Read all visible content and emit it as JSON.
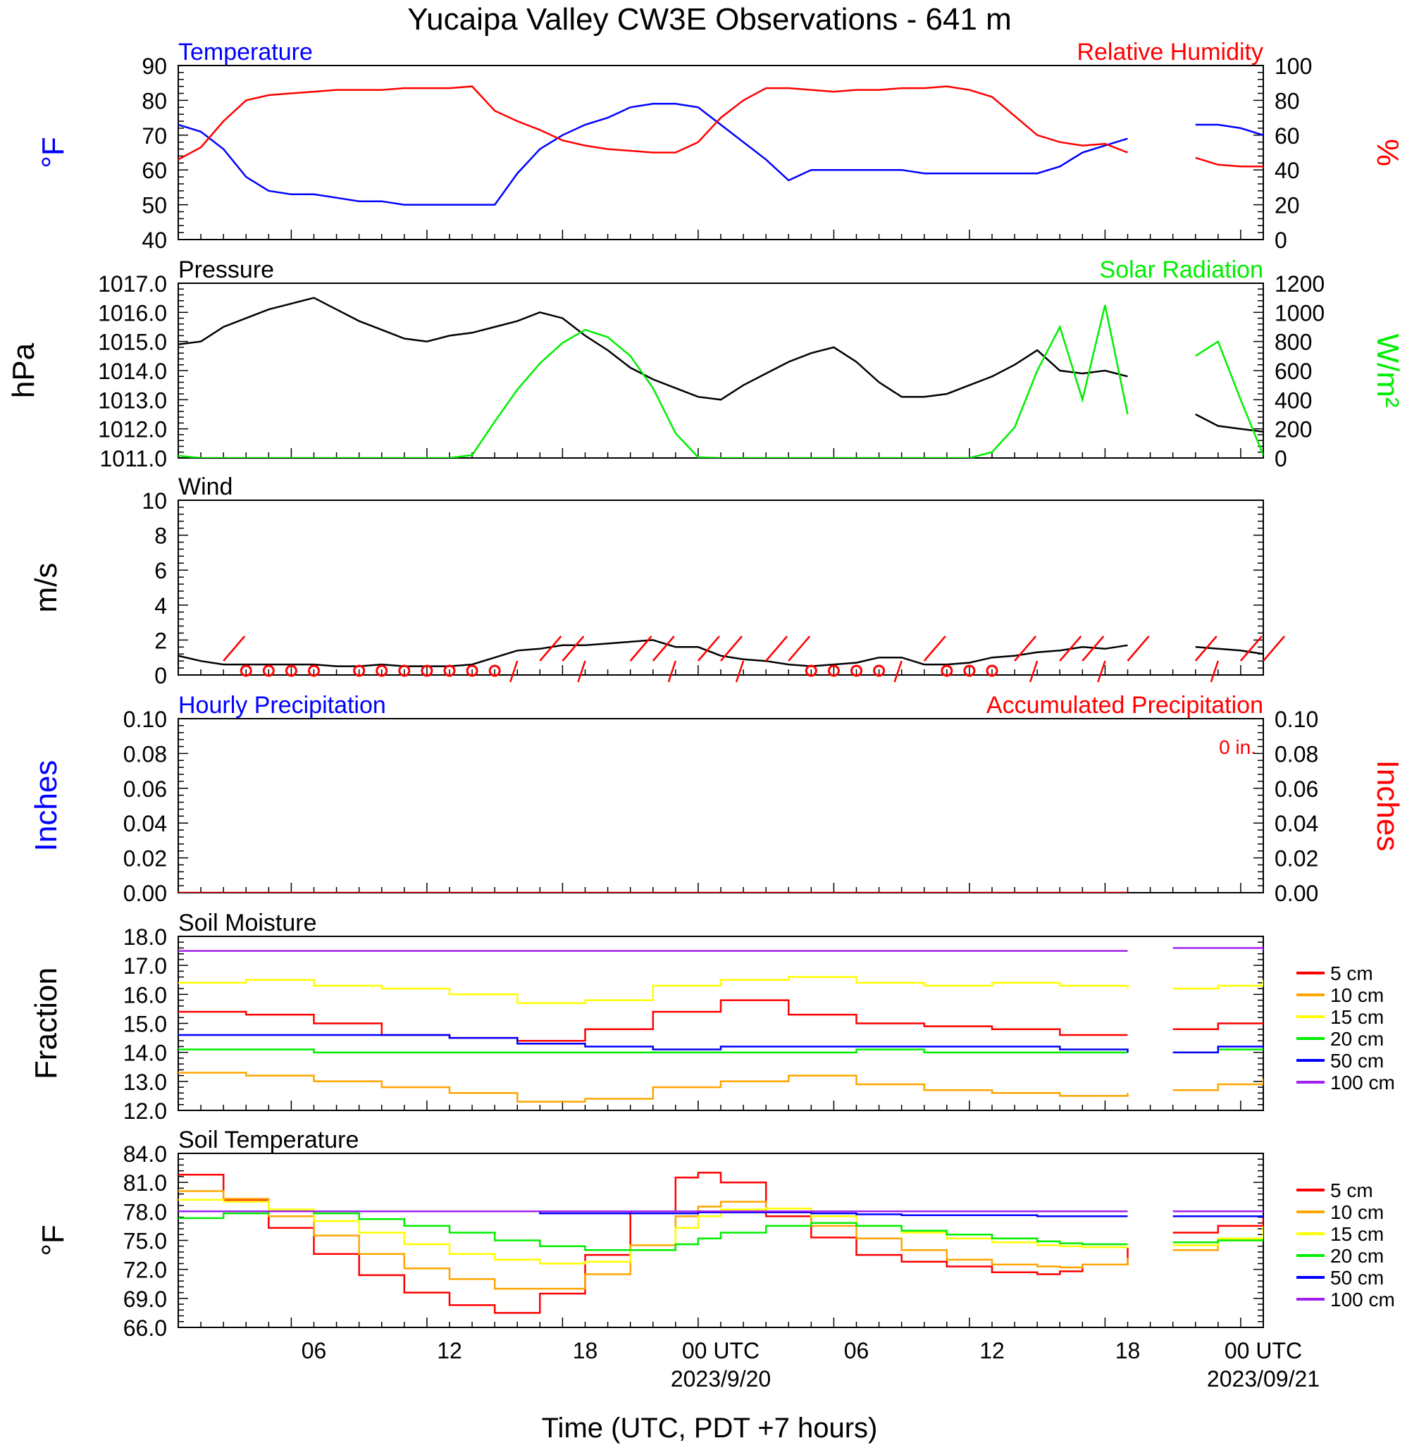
{
  "title": "Yucaipa Valley CW3E Observations - 641 m",
  "xlabel": "Time (UTC, PDT +7 hours)",
  "x_ticks": [
    "06",
    "12",
    "18",
    "00 UTC",
    "06",
    "12",
    "18",
    "00 UTC"
  ],
  "dates": [
    "2023/9/20",
    "2023/09/21"
  ],
  "chart_data": [
    {
      "type": "line",
      "title_left": "Temperature",
      "title_right": "Relative Humidity",
      "ylabel_left": "°F",
      "ylabel_right": "%",
      "ylim_left": [
        40,
        90
      ],
      "ylim_right": [
        0,
        100
      ],
      "yticks_left": [
        "90",
        "80",
        "70",
        "60",
        "50",
        "40"
      ],
      "yticks_right": [
        "100",
        "80",
        "60",
        "40",
        "20",
        "0"
      ],
      "x_hours": [
        1,
        2,
        3,
        4,
        5,
        6,
        7,
        8,
        9,
        10,
        11,
        12,
        13,
        14,
        15,
        16,
        17,
        18,
        19,
        20,
        21,
        22,
        23,
        24,
        25,
        26,
        27,
        28,
        29,
        30,
        31,
        32,
        33,
        34,
        35,
        36,
        37,
        38,
        39,
        40,
        41,
        42,
        43,
        44,
        45,
        46,
        47,
        48,
        49
      ],
      "series": [
        {
          "name": "Temperature",
          "color": "#0000ff",
          "axis": "left",
          "values": [
            73,
            71,
            66,
            58,
            54,
            53,
            53,
            52,
            51,
            51,
            50,
            50,
            50,
            50,
            50,
            59,
            66,
            70,
            73,
            75,
            78,
            79,
            79,
            78,
            73,
            68,
            63,
            57,
            60,
            60,
            60,
            60,
            60,
            59,
            59,
            59,
            59,
            59,
            59,
            61,
            65,
            67,
            69,
            null,
            null,
            73,
            73,
            72,
            70
          ]
        },
        {
          "name": "Relative Humidity",
          "color": "#ff0000",
          "axis": "right",
          "values": [
            46,
            53,
            68,
            80,
            83,
            84,
            85,
            86,
            86,
            86,
            87,
            87,
            87,
            88,
            74,
            68,
            63,
            57,
            54,
            52,
            51,
            50,
            50,
            56,
            70,
            80,
            87,
            87,
            86,
            85,
            86,
            86,
            87,
            87,
            88,
            86,
            82,
            71,
            60,
            56,
            54,
            55,
            50,
            null,
            null,
            47,
            43,
            42,
            42
          ]
        }
      ]
    },
    {
      "type": "line",
      "title_left": "Pressure",
      "title_right": "Solar Radiation",
      "ylabel_left": "hPa",
      "ylabel_right": "W/m²",
      "ylim_left": [
        1011.0,
        1017.0
      ],
      "ylim_right": [
        0,
        1200
      ],
      "yticks_left": [
        "1017.0",
        "1016.0",
        "1015.0",
        "1014.0",
        "1013.0",
        "1012.0",
        "1011.0"
      ],
      "yticks_right": [
        "1200",
        "1000",
        "800",
        "600",
        "400",
        "200",
        "0"
      ],
      "x_hours": [
        1,
        2,
        3,
        4,
        5,
        6,
        7,
        8,
        9,
        10,
        11,
        12,
        13,
        14,
        15,
        16,
        17,
        18,
        19,
        20,
        21,
        22,
        23,
        24,
        25,
        26,
        27,
        28,
        29,
        30,
        31,
        32,
        33,
        34,
        35,
        36,
        37,
        38,
        39,
        40,
        41,
        42,
        43,
        44,
        45,
        46,
        47,
        48,
        49
      ],
      "series": [
        {
          "name": "Pressure",
          "color": "#000000",
          "axis": "left",
          "values": [
            1014.9,
            1015.0,
            1015.5,
            1015.8,
            1016.1,
            1016.3,
            1016.5,
            1016.1,
            1015.7,
            1015.4,
            1015.1,
            1015.0,
            1015.2,
            1015.3,
            1015.5,
            1015.7,
            1016.0,
            1015.8,
            1015.2,
            1014.7,
            1014.1,
            1013.7,
            1013.4,
            1013.1,
            1013.0,
            1013.5,
            1013.9,
            1014.3,
            1014.6,
            1014.8,
            1014.3,
            1013.6,
            1013.1,
            1013.1,
            1013.2,
            1013.5,
            1013.8,
            1014.2,
            1014.7,
            1014.0,
            1013.9,
            1014.0,
            1013.8,
            null,
            null,
            1012.5,
            1012.1,
            1012.0,
            1011.9
          ]
        },
        {
          "name": "Solar Radiation",
          "color": "#00ee00",
          "axis": "right",
          "values": [
            15,
            0,
            0,
            0,
            0,
            0,
            0,
            0,
            0,
            0,
            0,
            0,
            0,
            20,
            250,
            470,
            650,
            790,
            880,
            830,
            700,
            480,
            170,
            5,
            0,
            0,
            0,
            0,
            0,
            0,
            0,
            0,
            0,
            0,
            0,
            0,
            40,
            210,
            600,
            900,
            400,
            1050,
            300,
            null,
            null,
            700,
            800,
            400,
            20
          ]
        }
      ]
    },
    {
      "type": "line",
      "title_left": "Wind",
      "ylabel_left": "m/s",
      "ylim_left": [
        0,
        10
      ],
      "yticks_left": [
        "10",
        "8",
        "6",
        "4",
        "2",
        "0"
      ],
      "x_hours": [
        1,
        2,
        3,
        4,
        5,
        6,
        7,
        8,
        9,
        10,
        11,
        12,
        13,
        14,
        15,
        16,
        17,
        18,
        19,
        20,
        21,
        22,
        23,
        24,
        25,
        26,
        27,
        28,
        29,
        30,
        31,
        32,
        33,
        34,
        35,
        36,
        37,
        38,
        39,
        40,
        41,
        42,
        43,
        44,
        45,
        46,
        47,
        48,
        49
      ],
      "series": [
        {
          "name": "Wind Speed",
          "color": "#000000",
          "axis": "left",
          "values": [
            1.1,
            0.8,
            0.6,
            0.6,
            0.6,
            0.6,
            0.6,
            0.5,
            0.5,
            0.6,
            0.5,
            0.5,
            0.5,
            0.6,
            1.0,
            1.4,
            1.5,
            1.7,
            1.7,
            1.8,
            1.9,
            2.0,
            1.6,
            1.6,
            1.1,
            0.9,
            0.8,
            0.6,
            0.5,
            0.6,
            0.7,
            1.0,
            1.0,
            0.6,
            0.6,
            0.7,
            1.0,
            1.1,
            1.3,
            1.4,
            1.6,
            1.5,
            1.7,
            null,
            null,
            1.6,
            1.5,
            1.4,
            1.2
          ]
        }
      ],
      "calm_marker_hours": [
        4,
        5,
        6,
        7,
        9,
        10,
        11,
        12,
        13,
        14,
        15,
        29,
        30,
        31,
        32,
        35,
        36,
        37
      ],
      "barb_hours": [
        3,
        16,
        17,
        18,
        19,
        21,
        22,
        23,
        24,
        25,
        26,
        27,
        28,
        33,
        34,
        38,
        39,
        40,
        41,
        42,
        43,
        46,
        47,
        48,
        49
      ]
    },
    {
      "type": "line",
      "title_left": "Hourly Precipitation",
      "title_right": "Accumulated Precipitation",
      "annotation": "0 in.",
      "ylabel_left": "Inches",
      "ylabel_right": "Inches",
      "ylim_left": [
        0,
        0.1
      ],
      "ylim_right": [
        0,
        0.1
      ],
      "yticks_left": [
        "0.10",
        "0.08",
        "0.06",
        "0.04",
        "0.02",
        "0.00"
      ],
      "yticks_right": [
        "0.10",
        "0.08",
        "0.06",
        "0.04",
        "0.02",
        "0.00"
      ],
      "x_hours": [
        1,
        43,
        44,
        49
      ],
      "series": [
        {
          "name": "Accumulated Precipitation",
          "color": "#ff0000",
          "axis": "right",
          "values": [
            0,
            0,
            null,
            0
          ]
        }
      ]
    },
    {
      "type": "line",
      "title_left": "Soil Moisture",
      "ylabel_left": "Fraction",
      "ylim_left": [
        12.0,
        18.0
      ],
      "yticks_left": [
        "18.0",
        "17.0",
        "16.0",
        "15.0",
        "14.0",
        "13.0",
        "12.0"
      ],
      "legend": "right",
      "x_hours": [
        1,
        4,
        7,
        10,
        13,
        16,
        19,
        22,
        25,
        28,
        31,
        34,
        37,
        40,
        43,
        44,
        45,
        47,
        49
      ],
      "series": [
        {
          "name": "5 cm",
          "color": "#ff0000",
          "values": [
            15.4,
            15.3,
            15.0,
            14.6,
            14.5,
            14.4,
            14.8,
            15.4,
            15.8,
            15.3,
            15.0,
            14.9,
            14.8,
            14.6,
            14.6,
            null,
            14.8,
            15.0,
            15.0
          ]
        },
        {
          "name": "10 cm",
          "color": "#ffa500",
          "values": [
            13.3,
            13.2,
            13.0,
            12.8,
            12.6,
            12.3,
            12.4,
            12.8,
            13.0,
            13.2,
            12.9,
            12.7,
            12.6,
            12.5,
            12.6,
            null,
            12.7,
            12.9,
            13.1
          ]
        },
        {
          "name": "15 cm",
          "color": "#ffff00",
          "values": [
            16.4,
            16.5,
            16.3,
            16.2,
            16.0,
            15.7,
            15.8,
            16.3,
            16.5,
            16.6,
            16.4,
            16.3,
            16.4,
            16.3,
            16.2,
            null,
            16.2,
            16.3,
            16.5
          ]
        },
        {
          "name": "20 cm",
          "color": "#00ee00",
          "values": [
            14.1,
            14.1,
            14.0,
            14.0,
            14.0,
            14.0,
            14.0,
            14.0,
            14.0,
            14.0,
            14.1,
            14.0,
            14.0,
            14.0,
            14.0,
            null,
            14.0,
            14.1,
            14.1
          ]
        },
        {
          "name": "50 cm",
          "color": "#0000ff",
          "values": [
            14.6,
            14.6,
            14.6,
            14.6,
            14.5,
            14.3,
            14.2,
            14.1,
            14.2,
            14.2,
            14.2,
            14.2,
            14.2,
            14.1,
            14.0,
            null,
            14.0,
            14.2,
            14.2
          ]
        },
        {
          "name": "100 cm",
          "color": "#a020f0",
          "values": [
            17.5,
            17.5,
            17.5,
            17.5,
            17.5,
            17.5,
            17.5,
            17.5,
            17.5,
            17.5,
            17.5,
            17.5,
            17.5,
            17.5,
            17.5,
            null,
            17.6,
            17.6,
            17.5
          ]
        }
      ]
    },
    {
      "type": "line",
      "title_left": "Soil Temperature",
      "ylabel_left": "°F",
      "ylim_left": [
        66.0,
        84.0
      ],
      "yticks_left": [
        "84.0",
        "81.0",
        "78.0",
        "75.0",
        "72.0",
        "69.0",
        "66.0"
      ],
      "legend": "right",
      "x_hours": [
        1,
        3,
        5,
        7,
        9,
        11,
        13,
        15,
        17,
        19,
        21,
        23,
        24,
        25,
        27,
        29,
        31,
        33,
        35,
        37,
        39,
        40,
        41,
        43,
        44,
        45,
        47,
        49
      ],
      "series": [
        {
          "name": "5 cm",
          "color": "#ff0000",
          "values": [
            81.8,
            79.2,
            76.3,
            73.6,
            71.4,
            69.6,
            68.3,
            67.5,
            69.5,
            73.5,
            78.0,
            81.5,
            82.0,
            81.0,
            77.5,
            75.3,
            73.5,
            72.8,
            72.3,
            71.7,
            71.5,
            71.8,
            72.5,
            74.2,
            null,
            75.8,
            76.5,
            77.5
          ]
        },
        {
          "name": "10 cm",
          "color": "#ffa500",
          "values": [
            80.1,
            79.3,
            77.5,
            75.5,
            73.6,
            72.1,
            71.0,
            70.0,
            70.0,
            71.5,
            74.5,
            77.5,
            78.5,
            79.0,
            78.0,
            76.5,
            75.2,
            74.0,
            73.0,
            72.5,
            72.3,
            72.2,
            72.5,
            73.2,
            null,
            74.0,
            75.0,
            76.5
          ]
        },
        {
          "name": "15 cm",
          "color": "#ffff00",
          "values": [
            79.2,
            79.0,
            78.2,
            77.0,
            75.8,
            74.6,
            73.6,
            73.0,
            72.6,
            72.8,
            74.0,
            76.3,
            77.5,
            78.2,
            78.3,
            77.5,
            76.5,
            75.8,
            75.2,
            74.8,
            74.5,
            74.4,
            74.3,
            74.4,
            null,
            74.5,
            75.2,
            76.5
          ]
        },
        {
          "name": "20 cm",
          "color": "#00ee00",
          "values": [
            77.3,
            77.8,
            78.0,
            77.8,
            77.2,
            76.5,
            75.8,
            75.0,
            74.4,
            74.0,
            74.0,
            74.6,
            75.2,
            75.8,
            76.5,
            76.8,
            76.5,
            76.0,
            75.6,
            75.2,
            74.9,
            74.7,
            74.6,
            74.6,
            null,
            74.8,
            75.0,
            75.2
          ]
        },
        {
          "name": "50 cm",
          "color": "#0000ff",
          "values": [
            78.0,
            78.0,
            78.0,
            78.0,
            78.0,
            78.0,
            78.0,
            78.0,
            77.8,
            77.8,
            77.8,
            77.8,
            77.9,
            77.9,
            77.9,
            77.8,
            77.7,
            77.6,
            77.6,
            77.6,
            77.5,
            77.5,
            77.5,
            77.5,
            null,
            77.5,
            77.5,
            77.3
          ]
        },
        {
          "name": "100 cm",
          "color": "#a020f0",
          "values": [
            78.0,
            78.0,
            78.0,
            78.0,
            78.0,
            78.0,
            78.0,
            78.0,
            78.0,
            78.0,
            78.0,
            78.0,
            78.0,
            78.0,
            78.0,
            78.0,
            78.0,
            78.0,
            78.0,
            78.0,
            78.0,
            78.0,
            78.0,
            78.0,
            null,
            78.0,
            78.0,
            78.0
          ]
        }
      ]
    }
  ]
}
